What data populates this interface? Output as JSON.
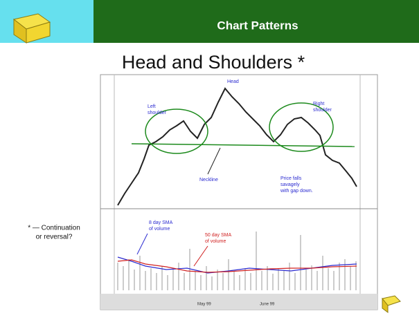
{
  "header": {
    "title": "Chart Patterns"
  },
  "slide": {
    "title": "Head and Shoulders *",
    "note": [
      "* — Continuation",
      "or reversal?"
    ]
  },
  "chart": {
    "left_shoulder": [
      "Left",
      "shoulder"
    ],
    "head": "Head",
    "right_shoulder": [
      "Right",
      "shoulder"
    ],
    "neckline": "Neckline",
    "gap_note": [
      "Price falls",
      "savagely",
      "with gap down."
    ],
    "sma8": [
      "8 day SMA",
      "of volume"
    ],
    "sma50": [
      "50 day SMA",
      "of volume"
    ],
    "months": [
      "May 99",
      "June 99"
    ]
  }
}
